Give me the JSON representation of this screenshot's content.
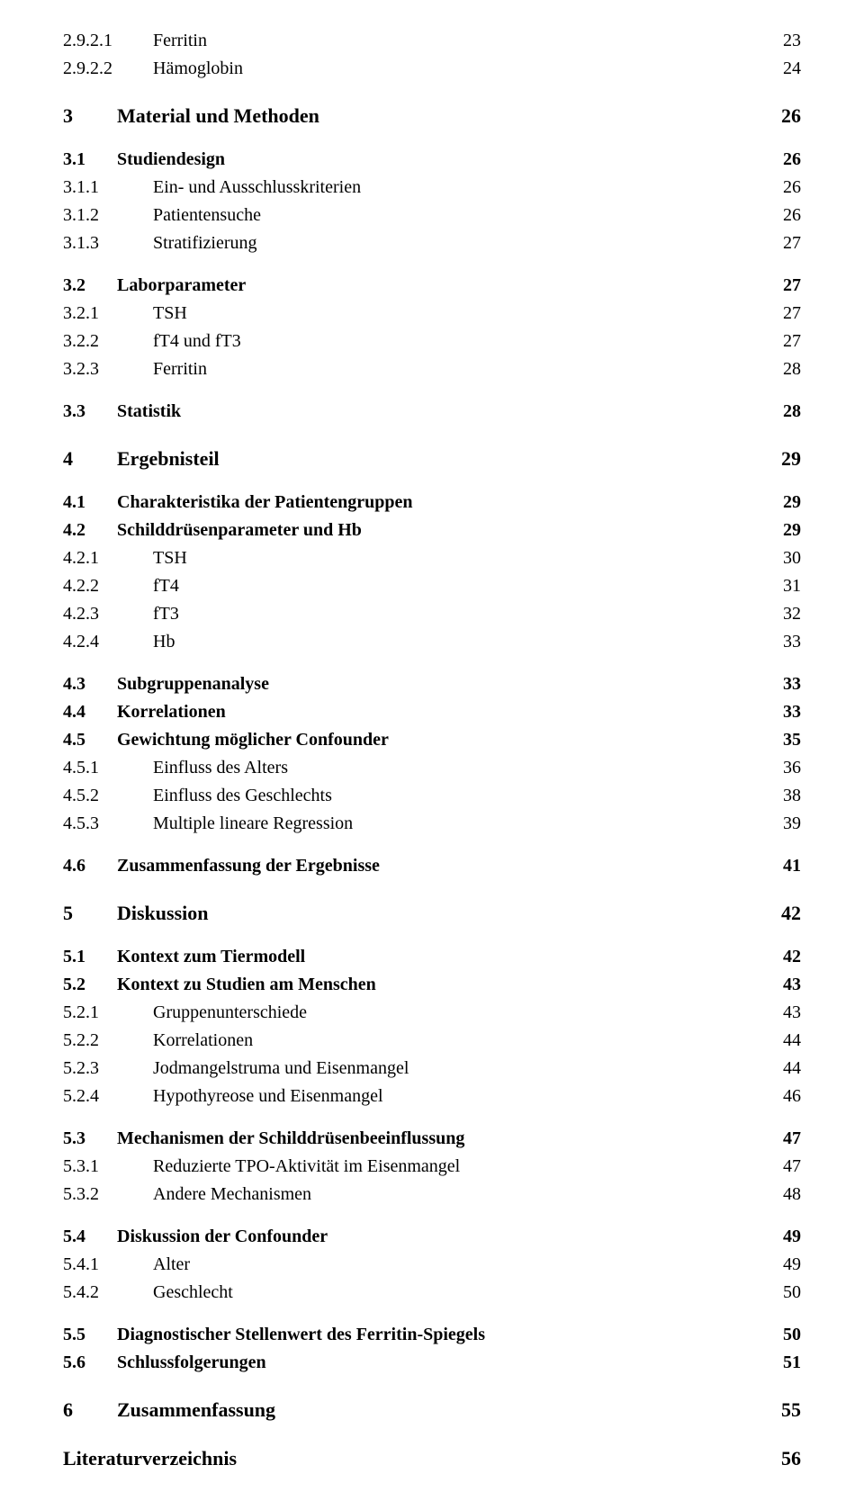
{
  "styles": {
    "background": "#ffffff",
    "text_color": "#000000",
    "font_family": "Times New Roman",
    "fontsize_lvl0": 22,
    "fontsize_lvl1": 20,
    "fontsize_lvl2": 20,
    "leader_char": "."
  },
  "entries": [
    {
      "spacer": 0
    },
    {
      "level": 2,
      "num": "2.9.2.1",
      "title": "Ferritin",
      "page": "23"
    },
    {
      "level": 2,
      "num": "2.9.2.2",
      "title": "Hämoglobin",
      "page": "24"
    },
    {
      "spacer": 20
    },
    {
      "level": 0,
      "num": "3",
      "title": "Material und Methoden",
      "page": "26"
    },
    {
      "spacer": 16
    },
    {
      "level": 1,
      "num": "3.1",
      "title": "Studiendesign",
      "page": "26"
    },
    {
      "level": 2,
      "num": "3.1.1",
      "title": "Ein- und Ausschlusskriterien",
      "page": "26"
    },
    {
      "level": 2,
      "num": "3.1.2",
      "title": "Patientensuche",
      "page": "26"
    },
    {
      "level": 2,
      "num": "3.1.3",
      "title": "Stratifizierung",
      "page": "27"
    },
    {
      "spacer": 16
    },
    {
      "level": 1,
      "num": "3.2",
      "title": "Laborparameter",
      "page": "27"
    },
    {
      "level": 2,
      "num": "3.2.1",
      "title": "TSH",
      "page": "27"
    },
    {
      "level": 2,
      "num": "3.2.2",
      "title": "fT4 und fT3",
      "page": "27"
    },
    {
      "level": 2,
      "num": "3.2.3",
      "title": "Ferritin",
      "page": "28"
    },
    {
      "spacer": 16
    },
    {
      "level": 1,
      "num": "3.3",
      "title": "Statistik",
      "page": "28"
    },
    {
      "spacer": 20
    },
    {
      "level": 0,
      "num": "4",
      "title": "Ergebnisteil",
      "page": "29"
    },
    {
      "spacer": 16
    },
    {
      "level": 1,
      "num": "4.1",
      "title": "Charakteristika der Patientengruppen",
      "page": "29"
    },
    {
      "level": 1,
      "num": "4.2",
      "title": "Schilddrüsenparameter und Hb",
      "page": "29"
    },
    {
      "level": 2,
      "num": "4.2.1",
      "title": "TSH",
      "page": "30"
    },
    {
      "level": 2,
      "num": "4.2.2",
      "title": "fT4",
      "page": "31"
    },
    {
      "level": 2,
      "num": "4.2.3",
      "title": "fT3",
      "page": "32"
    },
    {
      "level": 2,
      "num": "4.2.4",
      "title": "Hb",
      "page": "33"
    },
    {
      "spacer": 16
    },
    {
      "level": 1,
      "num": "4.3",
      "title": "Subgruppenanalyse",
      "page": "33"
    },
    {
      "level": 1,
      "num": "4.4",
      "title": "Korrelationen",
      "page": "33"
    },
    {
      "level": 1,
      "num": "4.5",
      "title": "Gewichtung möglicher Confounder",
      "page": "35"
    },
    {
      "level": 2,
      "num": "4.5.1",
      "title": "Einfluss des Alters",
      "page": "36"
    },
    {
      "level": 2,
      "num": "4.5.2",
      "title": "Einfluss des Geschlechts",
      "page": "38"
    },
    {
      "level": 2,
      "num": "4.5.3",
      "title": "Multiple lineare Regression",
      "page": "39"
    },
    {
      "spacer": 16
    },
    {
      "level": 1,
      "num": "4.6",
      "title": "Zusammenfassung der Ergebnisse",
      "page": "41"
    },
    {
      "spacer": 20
    },
    {
      "level": 0,
      "num": "5",
      "title": "Diskussion",
      "page": "42"
    },
    {
      "spacer": 16
    },
    {
      "level": 1,
      "num": "5.1",
      "title": "Kontext zum Tiermodell",
      "page": "42"
    },
    {
      "level": 1,
      "num": "5.2",
      "title": "Kontext zu Studien am Menschen",
      "page": "43"
    },
    {
      "level": 2,
      "num": "5.2.1",
      "title": "Gruppenunterschiede",
      "page": "43"
    },
    {
      "level": 2,
      "num": "5.2.2",
      "title": "Korrelationen",
      "page": "44"
    },
    {
      "level": 2,
      "num": "5.2.3",
      "title": "Jodmangelstruma und Eisenmangel",
      "page": "44"
    },
    {
      "level": 2,
      "num": "5.2.4",
      "title": "Hypothyreose und Eisenmangel",
      "page": "46"
    },
    {
      "spacer": 16
    },
    {
      "level": 1,
      "num": "5.3",
      "title": "Mechanismen der Schilddrüsenbeeinflussung",
      "page": "47"
    },
    {
      "level": 2,
      "num": "5.3.1",
      "title": "Reduzierte TPO-Aktivität im Eisenmangel",
      "page": "47"
    },
    {
      "level": 2,
      "num": "5.3.2",
      "title": "Andere Mechanismen",
      "page": "48"
    },
    {
      "spacer": 16
    },
    {
      "level": 1,
      "num": "5.4",
      "title": "Diskussion der Confounder",
      "page": "49"
    },
    {
      "level": 2,
      "num": "5.4.1",
      "title": "Alter",
      "page": "49"
    },
    {
      "level": 2,
      "num": "5.4.2",
      "title": "Geschlecht",
      "page": "50"
    },
    {
      "spacer": 16
    },
    {
      "level": 1,
      "num": "5.5",
      "title": "Diagnostischer Stellenwert des Ferritin-Spiegels",
      "page": "50"
    },
    {
      "level": 1,
      "num": "5.6",
      "title": "Schlussfolgerungen",
      "page": "51"
    },
    {
      "spacer": 20
    },
    {
      "level": 0,
      "num": "6",
      "title": "Zusammenfassung",
      "page": "55"
    },
    {
      "spacer": 20
    },
    {
      "level": 0,
      "num": "",
      "title": "Literaturverzeichnis",
      "page": "56",
      "noNum": true
    }
  ]
}
